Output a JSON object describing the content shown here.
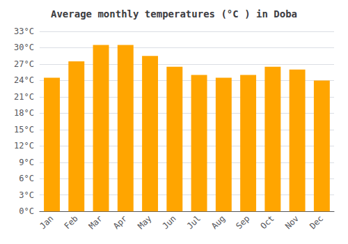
{
  "chart_data": {
    "type": "bar",
    "title": "Average monthly temperatures (°C ) in Doba",
    "categories": [
      "Jan",
      "Feb",
      "Mar",
      "Apr",
      "May",
      "Jun",
      "Jul",
      "Aug",
      "Sep",
      "Oct",
      "Nov",
      "Dec"
    ],
    "values": [
      24.5,
      27.5,
      30.5,
      30.5,
      28.5,
      26.5,
      25.0,
      24.5,
      25.0,
      26.5,
      26.0,
      24.0
    ],
    "color": "#FFA500",
    "ylim": [
      0,
      33
    ],
    "yticks": [
      {
        "value": 0,
        "label": "0°C"
      },
      {
        "value": 3,
        "label": "3°C"
      },
      {
        "value": 6,
        "label": "6°C"
      },
      {
        "value": 9,
        "label": "9°C"
      },
      {
        "value": 12,
        "label": "12°C"
      },
      {
        "value": 15,
        "label": "15°C"
      },
      {
        "value": 18,
        "label": "18°C"
      },
      {
        "value": 21,
        "label": "21°C"
      },
      {
        "value": 24,
        "label": "24°C"
      },
      {
        "value": 27,
        "label": "27°C"
      },
      {
        "value": 30,
        "label": "30°C"
      },
      {
        "value": 33,
        "label": "33°C"
      }
    ],
    "grid": true
  }
}
